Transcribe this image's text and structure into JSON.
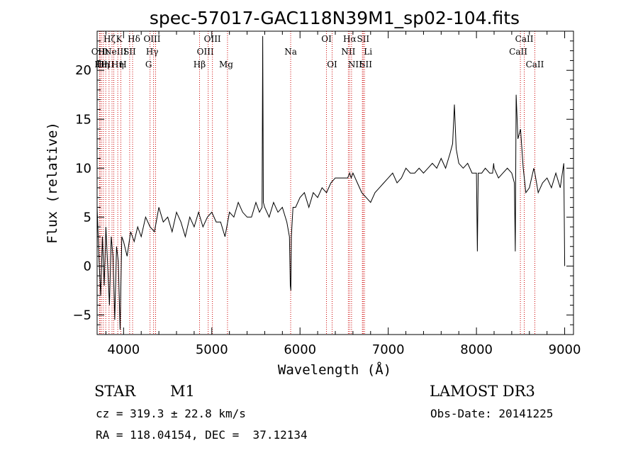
{
  "chart_data": {
    "type": "line",
    "title": "spec-57017-GAC118N39M1_sp02-104.fits",
    "xlabel": "Wavelength (Å)",
    "ylabel": "Flux (relative)",
    "xlim": [
      3700,
      9100
    ],
    "ylim": [
      -7,
      24
    ],
    "xticks": [
      4000,
      5000,
      6000,
      7000,
      8000,
      9000
    ],
    "xtick_labels": [
      "4000",
      "5000",
      "6000",
      "7000",
      "8000",
      "9000"
    ],
    "yticks": [
      -5,
      0,
      5,
      10,
      15,
      20
    ],
    "ytick_labels": [
      "−5",
      "0",
      "5",
      "10",
      "15",
      "20"
    ],
    "line_color": "#000000",
    "marker_color": "#cc0000",
    "series": [
      {
        "name": "flux",
        "x": [
          3700,
          3720,
          3740,
          3760,
          3780,
          3800,
          3820,
          3840,
          3860,
          3880,
          3900,
          3920,
          3940,
          3960,
          3980,
          4000,
          4040,
          4080,
          4120,
          4160,
          4200,
          4250,
          4300,
          4350,
          4400,
          4450,
          4500,
          4550,
          4600,
          4650,
          4700,
          4750,
          4800,
          4850,
          4900,
          4950,
          5000,
          5050,
          5100,
          5150,
          5200,
          5250,
          5300,
          5350,
          5400,
          5450,
          5500,
          5540,
          5570,
          5577,
          5584,
          5600,
          5650,
          5700,
          5750,
          5800,
          5850,
          5880,
          5890,
          5896,
          5902,
          5920,
          5950,
          6000,
          6050,
          6100,
          6150,
          6200,
          6250,
          6300,
          6350,
          6400,
          6450,
          6500,
          6540,
          6563,
          6580,
          6600,
          6650,
          6700,
          6750,
          6800,
          6850,
          6900,
          6950,
          7000,
          7050,
          7100,
          7150,
          7200,
          7250,
          7300,
          7350,
          7400,
          7450,
          7500,
          7550,
          7600,
          7650,
          7700,
          7730,
          7750,
          7770,
          7800,
          7850,
          7900,
          7950,
          8000,
          8010,
          8020,
          8060,
          8100,
          8150,
          8183,
          8195,
          8200,
          8250,
          8300,
          8350,
          8400,
          8430,
          8440,
          8450,
          8470,
          8500,
          8530,
          8542,
          8560,
          8600,
          8650,
          8662,
          8700,
          8750,
          8800,
          8850,
          8900,
          8950,
          8990,
          9000
        ],
        "y": [
          6.0,
          1.0,
          -3.0,
          3.0,
          -2.0,
          4.0,
          0.0,
          -4.0,
          3.0,
          1.0,
          -5.5,
          2.0,
          0.5,
          -6.5,
          3.0,
          2.5,
          1.0,
          3.5,
          2.5,
          4.0,
          3.0,
          5.0,
          4.0,
          3.5,
          6.0,
          4.5,
          5.0,
          3.5,
          5.5,
          4.5,
          3.0,
          5.0,
          4.0,
          5.5,
          4.0,
          5.0,
          5.5,
          4.5,
          4.5,
          3.0,
          5.5,
          5.0,
          6.5,
          5.5,
          5.0,
          5.0,
          6.5,
          5.5,
          6.0,
          23.5,
          6.5,
          6.0,
          5.0,
          6.5,
          5.5,
          6.0,
          4.5,
          3.0,
          -2.0,
          -2.5,
          3.0,
          6.0,
          6.0,
          7.0,
          7.5,
          6.0,
          7.5,
          7.0,
          8.0,
          7.5,
          8.5,
          9.0,
          9.0,
          9.0,
          9.0,
          9.5,
          9.0,
          9.5,
          8.5,
          7.5,
          7.0,
          6.5,
          7.5,
          8.0,
          8.5,
          9.0,
          9.5,
          8.5,
          9.0,
          10.0,
          9.5,
          9.5,
          10.0,
          9.5,
          10.0,
          10.5,
          10.0,
          11.0,
          10.0,
          11.5,
          12.5,
          16.5,
          12.0,
          10.5,
          10.0,
          10.5,
          9.5,
          9.5,
          1.5,
          9.5,
          9.5,
          10.0,
          9.5,
          9.5,
          10.5,
          10.0,
          9.0,
          9.5,
          10.0,
          9.5,
          8.5,
          1.5,
          17.5,
          13.0,
          14.0,
          10.0,
          9.0,
          7.5,
          8.0,
          10.0,
          9.5,
          7.5,
          8.5,
          9.0,
          8.0,
          9.5,
          8.0,
          10.5,
          0.0
        ]
      }
    ],
    "line_markers": [
      {
        "wl": 3727,
        "label": "OII",
        "row": 1,
        "dx": -2
      },
      {
        "wl": 3734,
        "label": "Hθ",
        "row": 2,
        "dx": 1
      },
      {
        "wl": 3750,
        "label": "Hη",
        "row": 2,
        "dx": 2
      },
      {
        "wl": 3771,
        "label": "Hι",
        "row": 1,
        "dx": 0
      },
      {
        "wl": 3798,
        "label": "OIII",
        "row": 2,
        "dx": 0
      },
      {
        "wl": 3835,
        "label": "Hη",
        "row": 2,
        "dx": 12
      },
      {
        "wl": 3869,
        "label": "NeIII",
        "row": 1,
        "dx": 5
      },
      {
        "wl": 3889,
        "label": "Hζ",
        "row": 0,
        "dx": -6
      },
      {
        "wl": 3934,
        "label": "K",
        "row": 0,
        "dx": 2
      },
      {
        "wl": 3969,
        "label": "H",
        "row": 2,
        "dx": 3
      },
      {
        "wl": 4069,
        "label": "SII",
        "row": 1,
        "dx": 0
      },
      {
        "wl": 4102,
        "label": "Hδ",
        "row": 0,
        "dx": 2
      },
      {
        "wl": 4300,
        "label": "G",
        "row": 2,
        "dx": -2
      },
      {
        "wl": 4340,
        "label": "Hγ",
        "row": 1,
        "dx": -2
      },
      {
        "wl": 4363,
        "label": "OIII",
        "row": 0,
        "dx": -5
      },
      {
        "wl": 4861,
        "label": "Hβ",
        "row": 2,
        "dx": 0
      },
      {
        "wl": 4959,
        "label": "OIII",
        "row": 1,
        "dx": -4
      },
      {
        "wl": 5007,
        "label": "OIII",
        "row": 0,
        "dx": 0
      },
      {
        "wl": 5178,
        "label": "Mg",
        "row": 2,
        "dx": -2
      },
      {
        "wl": 5894,
        "label": "Na",
        "row": 1,
        "dx": 0
      },
      {
        "wl": 6300,
        "label": "OI",
        "row": 0,
        "dx": 0
      },
      {
        "wl": 6364,
        "label": "OI",
        "row": 2,
        "dx": 0
      },
      {
        "wl": 6548,
        "label": "NII",
        "row": 1,
        "dx": 0
      },
      {
        "wl": 6563,
        "label": "Hα",
        "row": 0,
        "dx": 0
      },
      {
        "wl": 6584,
        "label": "NII",
        "row": 2,
        "dx": 5
      },
      {
        "wl": 6707,
        "label": "Li",
        "row": 1,
        "dx": 8
      },
      {
        "wl": 6716,
        "label": "SII",
        "row": 0,
        "dx": 0
      },
      {
        "wl": 6731,
        "label": "SII",
        "row": 2,
        "dx": 2
      },
      {
        "wl": 8498,
        "label": "CaII",
        "row": 1,
        "dx": -3
      },
      {
        "wl": 8542,
        "label": "CaII",
        "row": 0,
        "dx": 0
      },
      {
        "wl": 8662,
        "label": "CaII",
        "row": 2,
        "dx": 0
      }
    ]
  },
  "info": {
    "object_type": "STAR",
    "subclass": "M1",
    "survey": "LAMOST DR3",
    "redshift": "cz = 319.3 ± 22.8 km/s",
    "obs_date": "Obs-Date: 20141225",
    "coords": "RA = 118.04154, DEC =  37.12134"
  }
}
